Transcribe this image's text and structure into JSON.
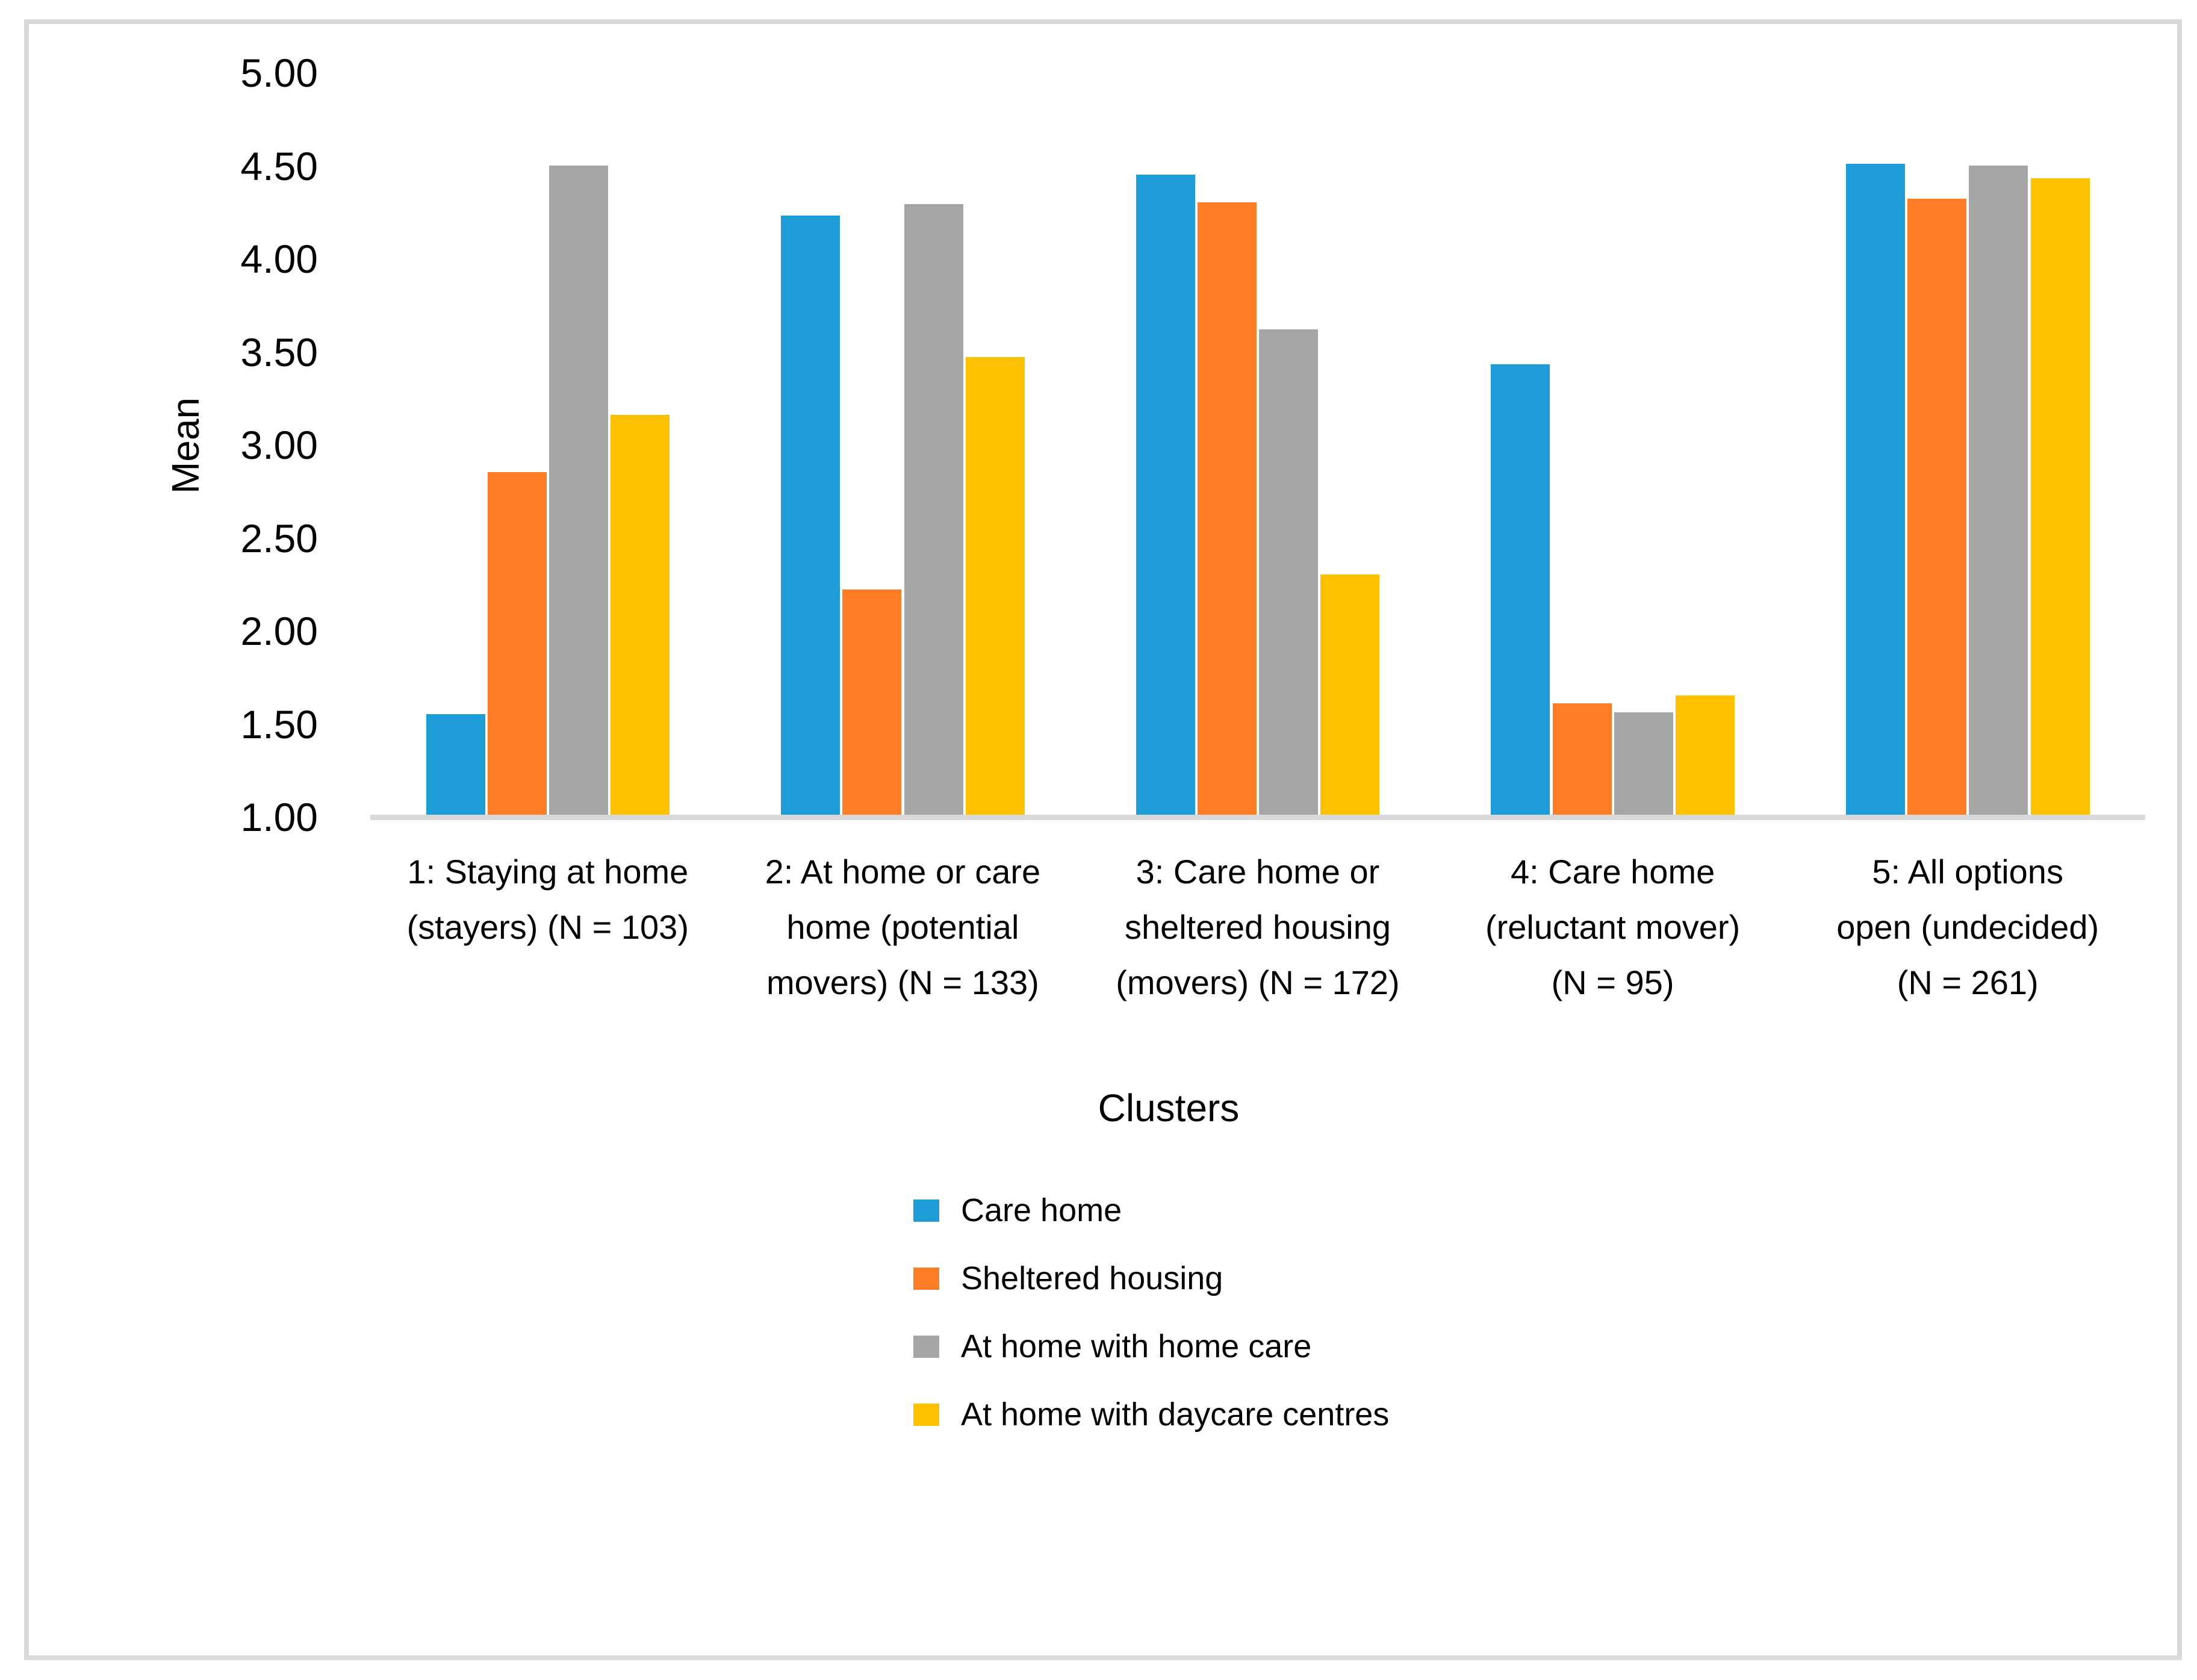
{
  "style": {
    "frame_color": "#D9D9D9",
    "axis_line_color": "#D9D9D9",
    "text_color": "#000000",
    "background": "#FFFFFF"
  },
  "chart_data": {
    "type": "bar",
    "title": "",
    "xlabel": "Clusters",
    "ylabel": "Mean",
    "ylim": [
      1.0,
      5.0
    ],
    "ytick_labels": [
      "5.00",
      "4.50",
      "4.00",
      "3.50",
      "3.00",
      "2.50",
      "2.00",
      "1.50",
      "1.00"
    ],
    "ytick_values": [
      5.0,
      4.5,
      4.0,
      3.5,
      3.0,
      2.5,
      2.0,
      1.5,
      1.0
    ],
    "grid": false,
    "legend_position": "bottom",
    "categories": [
      "1: Staying at home\n(stayers) (N = 103)",
      "2: At home or care\nhome (potential\nmovers) (N = 133)",
      "3: Care home or\nsheltered housing\n(movers) (N = 172)",
      "4: Care home\n(reluctant mover)\n(N = 95)",
      "5: All options\nopen (undecided)\n(N = 261)"
    ],
    "series": [
      {
        "name": "Care home",
        "color": "#1E9CD7",
        "values": [
          1.54,
          4.22,
          4.44,
          3.42,
          4.5
        ]
      },
      {
        "name": "Sheltered housing",
        "color": "#FC7D26",
        "values": [
          2.84,
          2.21,
          4.29,
          1.6,
          4.31
        ]
      },
      {
        "name": "At home with home care",
        "color": "#A6A6A6",
        "values": [
          4.49,
          4.28,
          3.61,
          1.55,
          4.49
        ]
      },
      {
        "name": "At home with daycare centres",
        "color": "#FFC000",
        "values": [
          3.15,
          3.46,
          2.29,
          1.64,
          4.42
        ]
      }
    ]
  }
}
